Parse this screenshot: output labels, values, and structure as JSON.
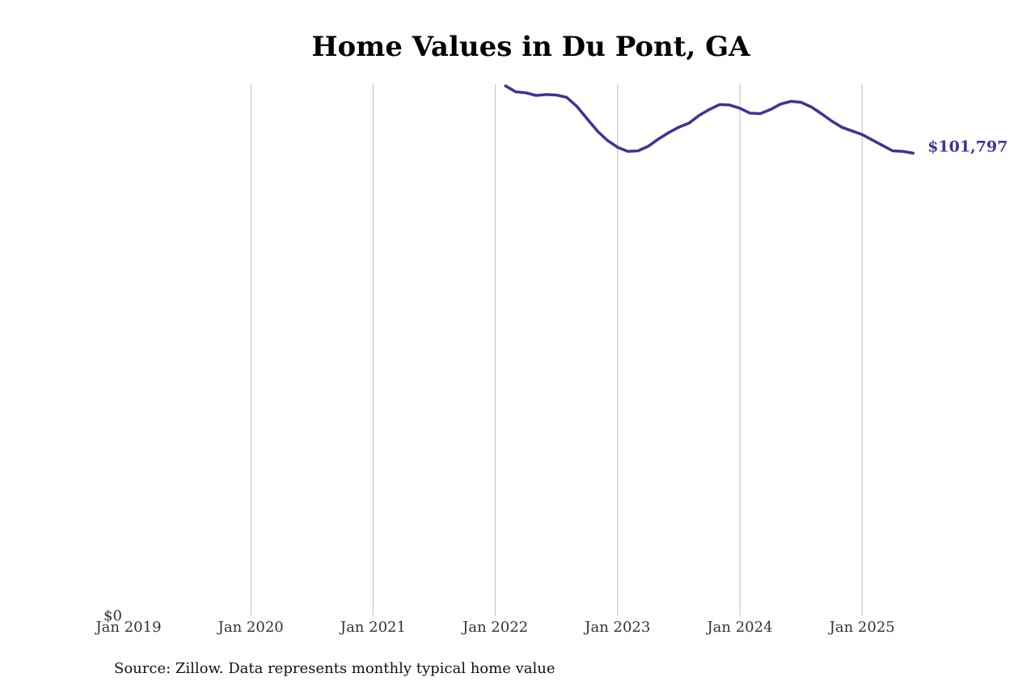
{
  "chart_data": {
    "type": "line",
    "title": "Home Values in Du Pont, GA",
    "source": "Source: Zillow. Data represents monthly typical home value",
    "xlabel": "",
    "ylabel": "",
    "y_tick_label": "$0",
    "x_ticks": [
      "Jan 2019",
      "Jan 2020",
      "Jan 2021",
      "Jan 2022",
      "Jan 2023",
      "Jan 2024",
      "Jan 2025"
    ],
    "x_range": [
      "2019-01",
      "2025-09"
    ],
    "ylim": [
      0,
      117000
    ],
    "grid": "vertical",
    "line_color": "#3a3596",
    "end_label": "$101,797",
    "series": [
      {
        "x": [
          "2022-02",
          "2022-03",
          "2022-04",
          "2022-05",
          "2022-06",
          "2022-07",
          "2022-08",
          "2022-09",
          "2022-10",
          "2022-11",
          "2022-12",
          "2023-01",
          "2023-02",
          "2023-03",
          "2023-04",
          "2023-05",
          "2023-06",
          "2023-07",
          "2023-08",
          "2023-09",
          "2023-10",
          "2023-11",
          "2023-12",
          "2024-01",
          "2024-02",
          "2024-03",
          "2024-04",
          "2024-05",
          "2024-06",
          "2024-07",
          "2024-08",
          "2024-09",
          "2024-10",
          "2024-11",
          "2024-12",
          "2025-01",
          "2025-02",
          "2025-03",
          "2025-04",
          "2025-05",
          "2025-06"
        ],
        "values": [
          116600,
          115300,
          115100,
          114500,
          114700,
          114600,
          114100,
          112100,
          109400,
          106700,
          104600,
          103100,
          102200,
          102300,
          103300,
          104900,
          106300,
          107500,
          108400,
          110100,
          111400,
          112500,
          112400,
          111700,
          110600,
          110500,
          111400,
          112600,
          113200,
          113000,
          112000,
          110500,
          108900,
          107500,
          106700,
          105900,
          104700,
          103500,
          102300,
          102200,
          101797
        ]
      }
    ]
  }
}
